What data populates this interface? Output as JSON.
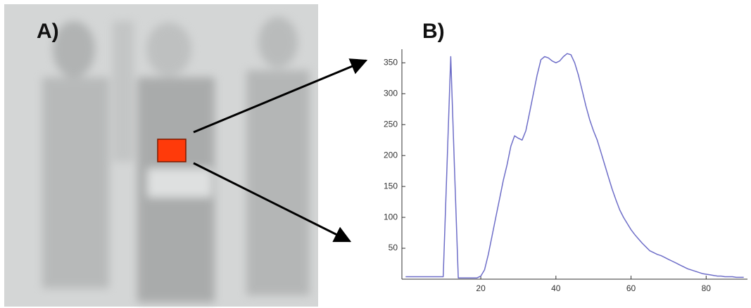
{
  "panels": {
    "a": "A)",
    "b": "B)"
  },
  "chart_data": {
    "type": "line",
    "x": [
      0,
      1,
      2,
      3,
      4,
      5,
      6,
      7,
      8,
      9,
      10,
      11,
      12,
      13,
      14,
      15,
      16,
      17,
      18,
      19,
      20,
      21,
      22,
      23,
      24,
      25,
      26,
      27,
      28,
      29,
      30,
      31,
      32,
      33,
      34,
      35,
      36,
      37,
      38,
      39,
      40,
      41,
      42,
      43,
      44,
      45,
      46,
      47,
      48,
      49,
      50,
      51,
      52,
      53,
      54,
      55,
      56,
      57,
      58,
      59,
      60,
      61,
      62,
      63,
      64,
      65,
      66,
      67,
      68,
      69,
      70,
      71,
      72,
      73,
      74,
      75,
      76,
      77,
      78,
      79,
      80,
      81,
      82,
      83,
      84,
      85,
      86,
      87,
      88,
      89,
      90
    ],
    "series": [
      {
        "color": "#6e6ec8",
        "values": [
          4,
          4,
          4,
          4,
          4,
          4,
          4,
          4,
          4,
          4,
          4,
          180,
          360,
          180,
          2,
          2,
          2,
          2,
          2,
          2,
          5,
          15,
          40,
          70,
          100,
          130,
          160,
          185,
          215,
          232,
          228,
          225,
          240,
          270,
          300,
          330,
          355,
          360,
          358,
          353,
          350,
          353,
          360,
          365,
          363,
          350,
          330,
          305,
          280,
          258,
          240,
          225,
          205,
          185,
          165,
          145,
          128,
          112,
          100,
          90,
          80,
          72,
          65,
          58,
          52,
          46,
          43,
          40,
          38,
          35,
          32,
          29,
          26,
          23,
          20,
          17,
          15,
          13,
          11,
          9,
          8,
          7,
          6,
          5,
          5,
          4,
          4,
          4,
          3,
          3,
          3
        ]
      }
    ],
    "xlim": [
      -1,
      91
    ],
    "ylim": [
      0,
      372
    ],
    "xticks": [
      20,
      40,
      60,
      80
    ],
    "yticks": [
      50,
      100,
      150,
      200,
      250,
      300,
      350
    ]
  }
}
